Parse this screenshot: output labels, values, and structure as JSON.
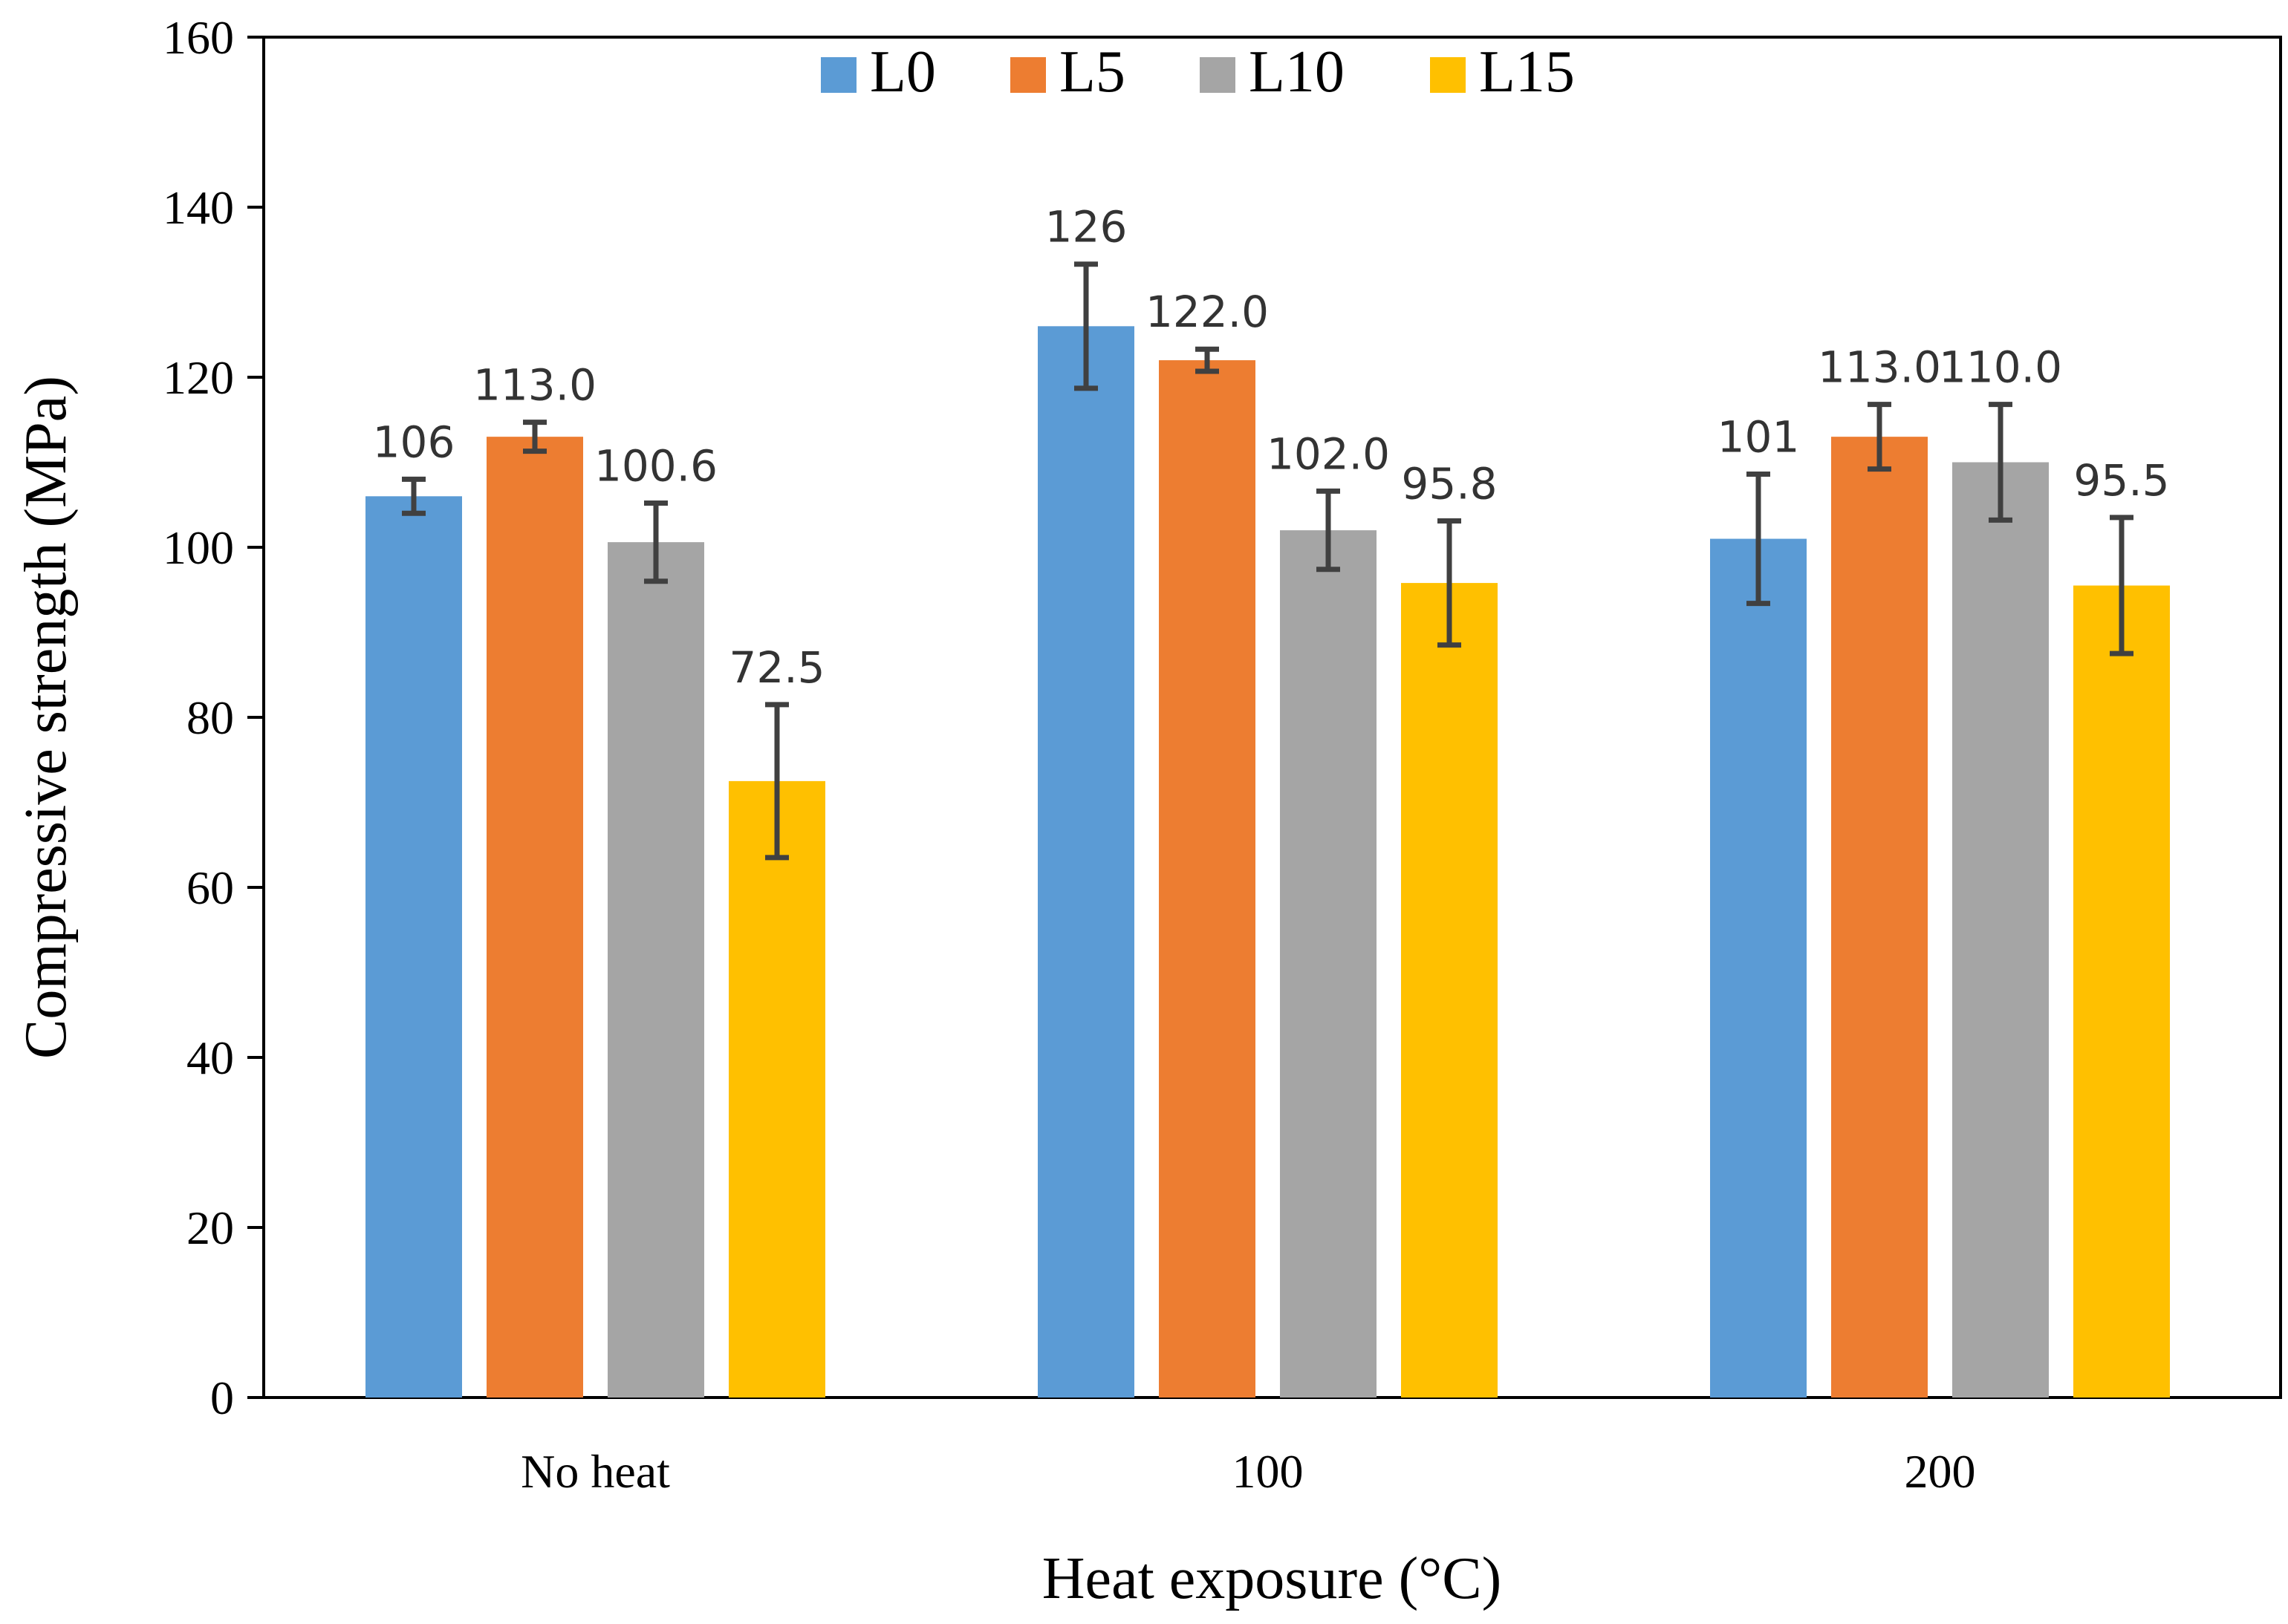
{
  "chart_data": {
    "type": "bar",
    "title": "",
    "xlabel": "Heat exposure (°C)",
    "ylabel": "Compressive strength (MPa)",
    "ylim": [
      0,
      160
    ],
    "yticks": [
      0,
      20,
      40,
      60,
      80,
      100,
      120,
      140,
      160
    ],
    "categories": [
      "No heat",
      "100",
      "200"
    ],
    "legend_position": "top-center",
    "grid": false,
    "series": [
      {
        "name": "L0",
        "color": "#5b9bd5",
        "values": [
          106,
          126,
          101
        ],
        "errors": [
          2.0,
          7.3,
          7.6
        ],
        "labels": [
          "106",
          "126",
          "101"
        ]
      },
      {
        "name": "L5",
        "color": "#ed7d31",
        "values": [
          113.0,
          122.0,
          113.0
        ],
        "errors": [
          1.7,
          1.3,
          3.8
        ],
        "labels": [
          "113.0",
          "122.0",
          "113.0"
        ]
      },
      {
        "name": "L10",
        "color": "#a5a5a5",
        "values": [
          100.6,
          102.0,
          110.0
        ],
        "errors": [
          4.6,
          4.6,
          6.8
        ],
        "labels": [
          "100.6",
          "102.0",
          "110.0"
        ]
      },
      {
        "name": "L15",
        "color": "#ffc000",
        "values": [
          72.5,
          95.8,
          95.5
        ],
        "errors": [
          9.0,
          7.3,
          8.0
        ],
        "labels": [
          "72.5",
          "95.8",
          "95.5"
        ]
      }
    ]
  }
}
